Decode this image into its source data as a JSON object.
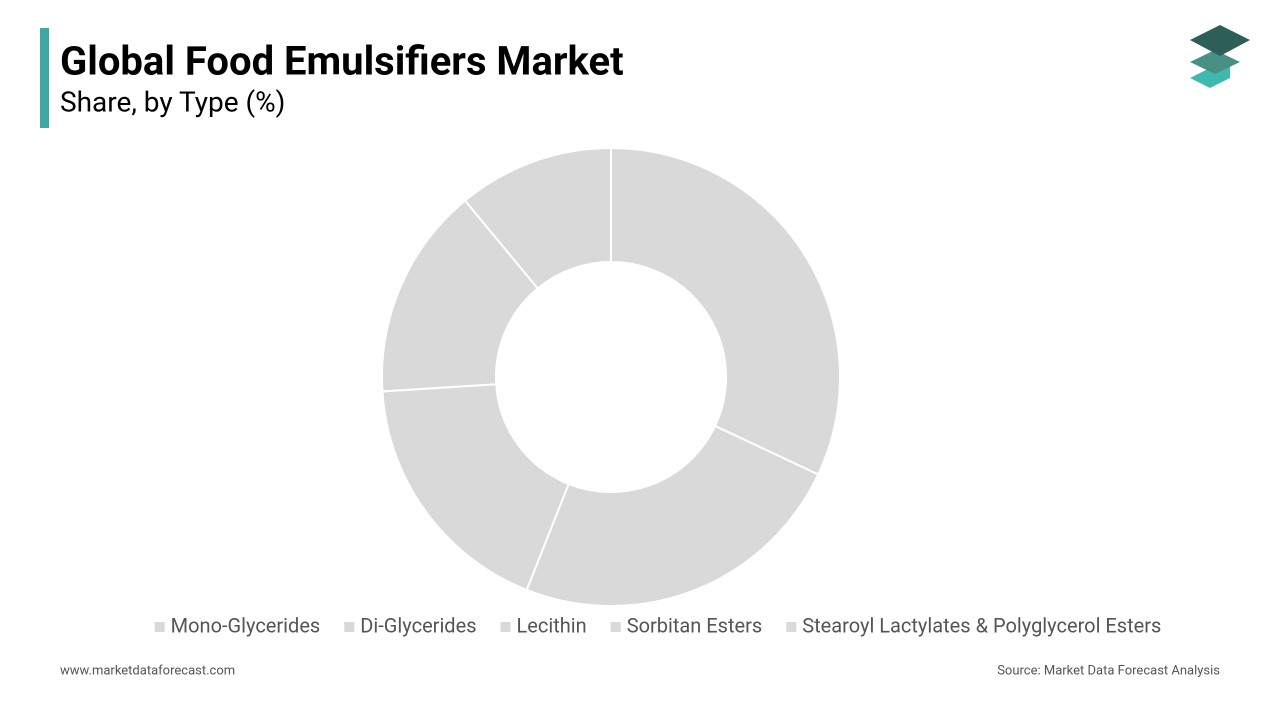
{
  "chart_data": {
    "type": "donut",
    "title": "Global Food Emulsifiers Market",
    "subtitle": "Share, by Type (%)",
    "categories": [
      "Mono-Glycerides",
      "Di-Glycerides",
      "Lecithin",
      "Sorbitan Esters",
      "Stearoyl Lactylates & Polyglycerol Esters"
    ],
    "values": [
      32,
      24,
      18,
      15,
      11
    ],
    "colors": [
      "#d9d9d9",
      "#d9d9d9",
      "#d9d9d9",
      "#d9d9d9",
      "#d9d9d9"
    ],
    "legend": "bottom"
  },
  "footer": {
    "website": "www.marketdataforecast.com",
    "source": "Source: Market Data Forecast Analysis"
  }
}
